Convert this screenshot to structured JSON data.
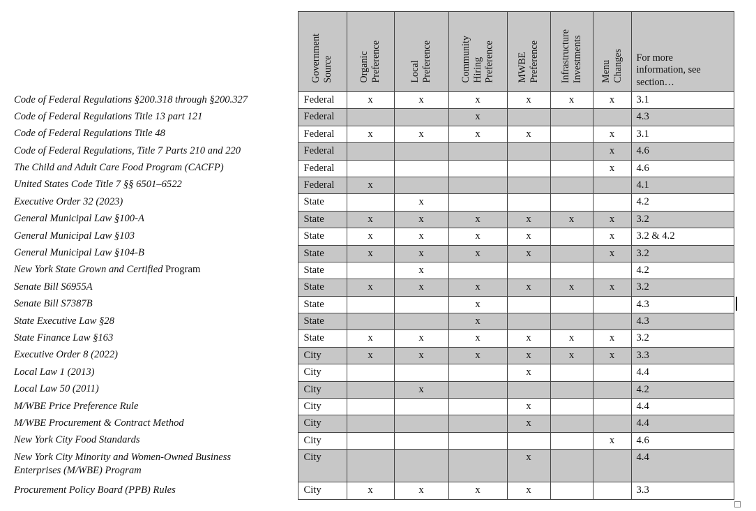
{
  "table": {
    "header": {
      "rotated_columns": [
        {
          "label": "Government Source",
          "lines": [
            "Government",
            "Source"
          ]
        },
        {
          "label": "Organic Preference",
          "lines": [
            "Organic",
            "Preference"
          ]
        },
        {
          "label": "Local Preference",
          "lines": [
            "Local",
            "Preference"
          ]
        },
        {
          "label": "Community Hiring Preference",
          "lines": [
            "Community",
            "Hiring",
            "Preference"
          ]
        },
        {
          "label": "MWBE Preference",
          "lines": [
            "MWBE",
            "Preference"
          ]
        },
        {
          "label": "Infrastructure Investments",
          "lines": [
            "Infrastructure",
            "Investments"
          ]
        },
        {
          "label": "Menu Changes",
          "lines": [
            "Menu",
            "Changes"
          ]
        }
      ],
      "info_column": "For more information, see section…"
    },
    "rows": [
      {
        "law": "Code of Federal Regulations §200.318 through §200.327",
        "law_plain": "",
        "source": "Federal",
        "marks": [
          "x",
          "x",
          "x",
          "x",
          "x",
          "x"
        ],
        "section": "3.1"
      },
      {
        "law": "Code of Federal Regulations Title 13 part 121",
        "law_plain": "",
        "source": "Federal",
        "marks": [
          "",
          "",
          "x",
          "",
          "",
          ""
        ],
        "section": "4.3"
      },
      {
        "law": "Code of Federal Regulations Title 48",
        "law_plain": "",
        "source": "Federal",
        "marks": [
          "x",
          "x",
          "x",
          "x",
          "",
          "x"
        ],
        "section": "3.1"
      },
      {
        "law": "Code of Federal Regulations, Title 7 Parts 210 and 220",
        "law_plain": "",
        "source": "Federal",
        "marks": [
          "",
          "",
          "",
          "",
          "",
          "x"
        ],
        "section": "4.6"
      },
      {
        "law": "The Child and Adult Care Food Program (CACFP)",
        "law_plain": "",
        "source": "Federal",
        "marks": [
          "",
          "",
          "",
          "",
          "",
          "x"
        ],
        "section": "4.6"
      },
      {
        "law": "United States Code Title 7 §§ 6501–6522",
        "law_plain": "",
        "source": "Federal",
        "marks": [
          "x",
          "",
          "",
          "",
          "",
          ""
        ],
        "section": "4.1"
      },
      {
        "law": "Executive Order 32 (2023)",
        "law_plain": "",
        "source": "State",
        "marks": [
          "",
          "x",
          "",
          "",
          "",
          ""
        ],
        "section": "4.2"
      },
      {
        "law": "General Municipal Law §100-A",
        "law_plain": "",
        "source": "State",
        "marks": [
          "x",
          "x",
          "x",
          "x",
          "x",
          "x"
        ],
        "section": "3.2"
      },
      {
        "law": "General Municipal Law §103",
        "law_plain": "",
        "source": "State",
        "marks": [
          "x",
          "x",
          "x",
          "x",
          "",
          "x"
        ],
        "section": "3.2 & 4.2"
      },
      {
        "law": "General Municipal Law §104-B",
        "law_plain": "",
        "source": "State",
        "marks": [
          "x",
          "x",
          "x",
          "x",
          "",
          "x"
        ],
        "section": "3.2"
      },
      {
        "law": "New York State Grown and Certified",
        "law_plain": " Program",
        "source": "State",
        "marks": [
          "",
          "x",
          "",
          "",
          "",
          ""
        ],
        "section": "4.2"
      },
      {
        "law": "Senate Bill S6955A",
        "law_plain": "",
        "source": "State",
        "marks": [
          "x",
          "x",
          "x",
          "x",
          "x",
          "x"
        ],
        "section": "3.2"
      },
      {
        "law": "Senate Bill S7387B",
        "law_plain": "",
        "source": "State",
        "marks": [
          "",
          "",
          "x",
          "",
          "",
          ""
        ],
        "section": "4.3"
      },
      {
        "law": "State Executive Law §28",
        "law_plain": "",
        "source": "State",
        "marks": [
          "",
          "",
          "x",
          "",
          "",
          ""
        ],
        "section": "4.3"
      },
      {
        "law": "State Finance Law §163",
        "law_plain": "",
        "source": "State",
        "marks": [
          "x",
          "x",
          "x",
          "x",
          "x",
          "x"
        ],
        "section": "3.2"
      },
      {
        "law": "Executive Order 8 (2022)",
        "law_plain": "",
        "source": "City",
        "marks": [
          "x",
          "x",
          "x",
          "x",
          "x",
          "x"
        ],
        "section": "3.3"
      },
      {
        "law": "Local Law 1 (2013)",
        "law_plain": "",
        "source": "City",
        "marks": [
          "",
          "",
          "",
          "x",
          "",
          ""
        ],
        "section": "4.4"
      },
      {
        "law": "Local Law 50 (2011)",
        "law_plain": "",
        "source": "City",
        "marks": [
          "",
          "x",
          "",
          "",
          "",
          ""
        ],
        "section": "4.2"
      },
      {
        "law": "M/WBE Price Preference Rule",
        "law_plain": "",
        "source": "City",
        "marks": [
          "",
          "",
          "",
          "x",
          "",
          ""
        ],
        "section": "4.4"
      },
      {
        "law": "M/WBE Procurement & Contract Method",
        "law_plain": "",
        "source": "City",
        "marks": [
          "",
          "",
          "",
          "x",
          "",
          ""
        ],
        "section": "4.4"
      },
      {
        "law": "New York City Food Standards",
        "law_plain": "",
        "source": "City",
        "marks": [
          "",
          "",
          "",
          "",
          "",
          "x"
        ],
        "section": "4.6"
      },
      {
        "law": "New York City Minority and Women-Owned Business Enterprises (M/WBE) Program",
        "law_plain": "",
        "source": "City",
        "marks": [
          "",
          "",
          "",
          "x",
          "",
          ""
        ],
        "section": "4.4",
        "tall": true
      },
      {
        "law": "Procurement Policy Board (PPB) Rules",
        "law_plain": "",
        "source": "City",
        "marks": [
          "x",
          "x",
          "x",
          "x",
          "",
          ""
        ],
        "section": "3.3"
      }
    ],
    "colors": {
      "shaded_row": "#c7c7c7",
      "border": "#454545",
      "caret": "#000000"
    }
  }
}
